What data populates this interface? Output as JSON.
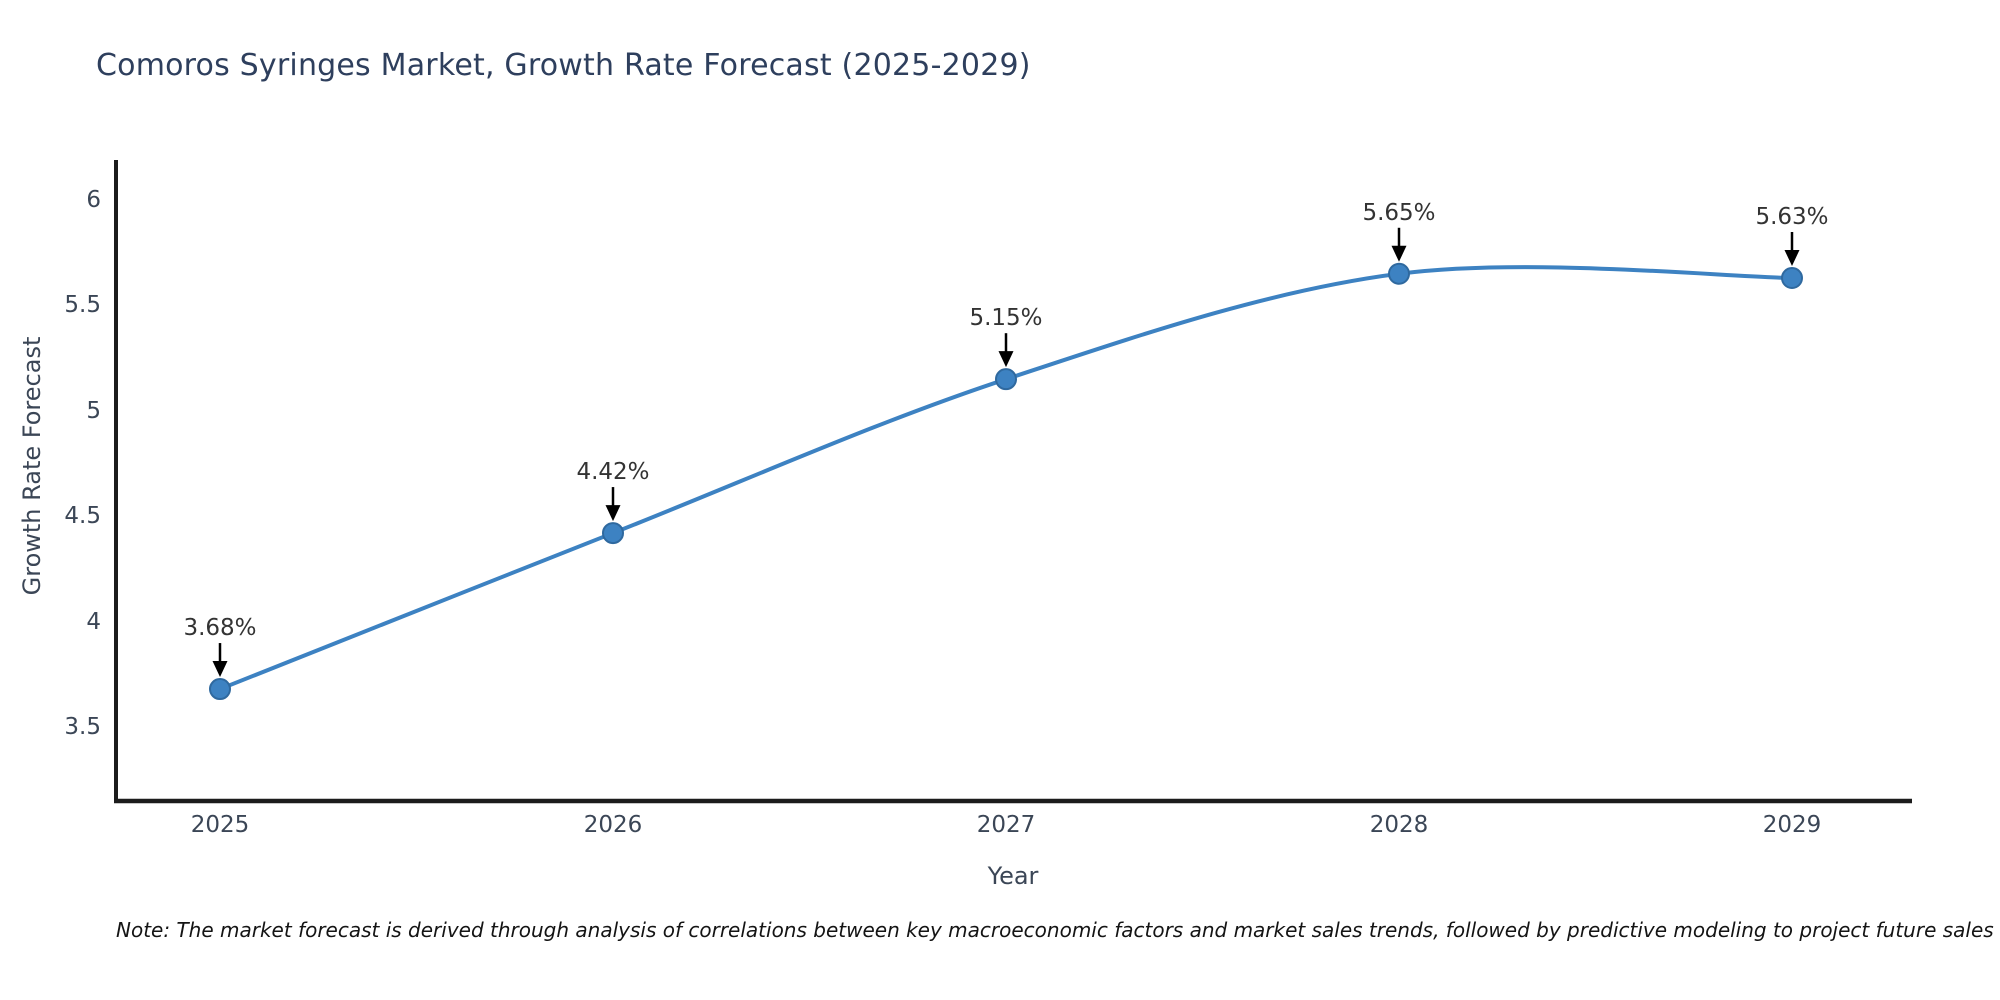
{
  "title": "Comoros Syringes Market, Growth Rate Forecast (2025-2029)",
  "x_axis": {
    "label": "Year",
    "ticks": [
      "2025",
      "2026",
      "2027",
      "2028",
      "2029"
    ]
  },
  "y_axis": {
    "label": "Growth Rate Forecast",
    "ticks": [
      "6",
      "5.5",
      "5",
      "4.5",
      "4",
      "3.5"
    ]
  },
  "note": "Note: The market forecast is derived through analysis of correlations between key macroeconomic factors and market sales trends, followed by predictive modeling to project future sales",
  "colors": {
    "background": "#ffffff",
    "line": "#3d82c2",
    "marker_fill": "#3d82c2",
    "marker_edge": "#2f699f",
    "axis": "#1c1c1c",
    "title": "#2e3f5d",
    "tick": "#3b4656",
    "annotation": "#333333",
    "arrow": "#000000"
  },
  "chart_data": {
    "type": "line",
    "x": [
      2025,
      2026,
      2027,
      2028,
      2029
    ],
    "values": [
      3.68,
      4.42,
      5.15,
      5.65,
      5.63
    ],
    "point_labels": [
      "3.68%",
      "4.42%",
      "5.15%",
      "5.65%",
      "5.63%"
    ],
    "series_name": "Growth Rate Forecast",
    "title": "Comoros Syringes Market, Growth Rate Forecast (2025-2029)",
    "xlabel": "Year",
    "ylabel": "Growth Rate Forecast",
    "yticks": [
      6,
      5.5,
      5,
      4.5,
      4,
      3.5
    ],
    "ylim": [
      3.2,
      6.2
    ],
    "grid": false,
    "legend": false,
    "smooth": true,
    "marker": "circle"
  }
}
